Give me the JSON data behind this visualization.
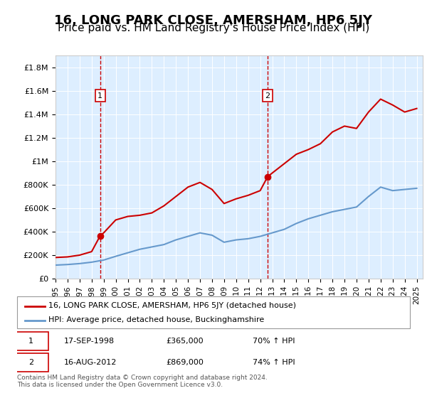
{
  "title": "16, LONG PARK CLOSE, AMERSHAM, HP6 5JY",
  "subtitle": "Price paid vs. HM Land Registry's House Price Index (HPI)",
  "title_fontsize": 13,
  "subtitle_fontsize": 11,
  "background_color": "#ffffff",
  "plot_bg_color": "#ddeeff",
  "ylim": [
    0,
    1900000
  ],
  "yticks": [
    0,
    200000,
    400000,
    600000,
    800000,
    1000000,
    1200000,
    1400000,
    1600000,
    1800000
  ],
  "ytick_labels": [
    "£0",
    "£200K",
    "£400K",
    "£600K",
    "£800K",
    "£1M",
    "£1.2M",
    "£1.4M",
    "£1.6M",
    "£1.8M"
  ],
  "xlim_start": 1995.5,
  "xlim_end": 2025.5,
  "xtick_years": [
    1995,
    1996,
    1997,
    1998,
    1999,
    2000,
    2001,
    2002,
    2003,
    2004,
    2005,
    2006,
    2007,
    2008,
    2009,
    2010,
    2011,
    2012,
    2013,
    2014,
    2015,
    2016,
    2017,
    2018,
    2019,
    2020,
    2021,
    2022,
    2023,
    2024,
    2025
  ],
  "sale1_x": 1998.71,
  "sale1_y": 365000,
  "sale2_x": 2012.62,
  "sale2_y": 869000,
  "sale_color": "#cc0000",
  "hpi_color": "#6699cc",
  "vline_color": "#cc0000",
  "marker_color": "#cc0000",
  "legend_label_red": "16, LONG PARK CLOSE, AMERSHAM, HP6 5JY (detached house)",
  "legend_label_blue": "HPI: Average price, detached house, Buckinghamshire",
  "annotation1_label": "1",
  "annotation2_label": "2",
  "note1_num": "1",
  "note1_date": "17-SEP-1998",
  "note1_price": "£365,000",
  "note1_hpi": "70% ↑ HPI",
  "note2_num": "2",
  "note2_date": "16-AUG-2012",
  "note2_price": "£869,000",
  "note2_hpi": "74% ↑ HPI",
  "footer": "Contains HM Land Registry data © Crown copyright and database right 2024.\nThis data is licensed under the Open Government Licence v3.0.",
  "red_line_data_x": [
    1995,
    1996,
    1997,
    1998,
    1998.71,
    1999,
    2000,
    2001,
    2002,
    2003,
    2004,
    2005,
    2006,
    2007,
    2008,
    2009,
    2010,
    2011,
    2012,
    2012.62,
    2013,
    2014,
    2015,
    2016,
    2017,
    2018,
    2019,
    2020,
    2021,
    2022,
    2023,
    2024,
    2025
  ],
  "red_line_data_y": [
    180000,
    185000,
    200000,
    230000,
    365000,
    390000,
    500000,
    530000,
    540000,
    560000,
    620000,
    700000,
    780000,
    820000,
    760000,
    640000,
    680000,
    710000,
    750000,
    869000,
    900000,
    980000,
    1060000,
    1100000,
    1150000,
    1250000,
    1300000,
    1280000,
    1420000,
    1530000,
    1480000,
    1420000,
    1450000
  ],
  "blue_line_data_x": [
    1995,
    1996,
    1997,
    1998,
    1999,
    2000,
    2001,
    2002,
    2003,
    2004,
    2005,
    2006,
    2007,
    2008,
    2009,
    2010,
    2011,
    2012,
    2013,
    2014,
    2015,
    2016,
    2017,
    2018,
    2019,
    2020,
    2021,
    2022,
    2023,
    2024,
    2025
  ],
  "blue_line_data_y": [
    115000,
    120000,
    128000,
    140000,
    158000,
    190000,
    220000,
    250000,
    270000,
    290000,
    330000,
    360000,
    390000,
    370000,
    310000,
    330000,
    340000,
    360000,
    390000,
    420000,
    470000,
    510000,
    540000,
    570000,
    590000,
    610000,
    700000,
    780000,
    750000,
    760000,
    770000
  ]
}
